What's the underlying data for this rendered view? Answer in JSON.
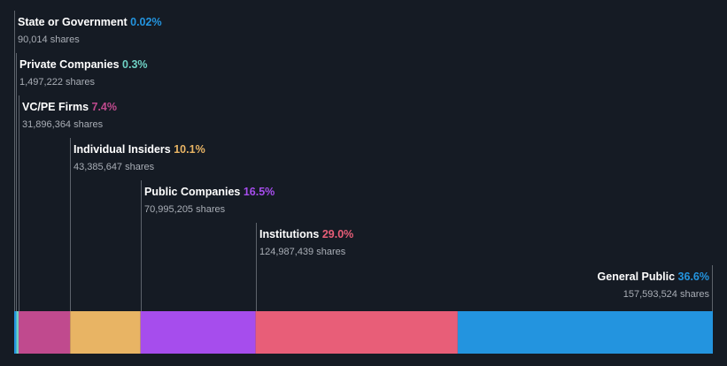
{
  "chart_data": {
    "type": "bar",
    "orientation": "horizontal-stacked",
    "categories": [
      "State or Government",
      "Private Companies",
      "VC/PE Firms",
      "Individual Insiders",
      "Public Companies",
      "Institutions",
      "General Public"
    ],
    "percent_labels": [
      "0.02%",
      "0.3%",
      "7.4%",
      "10.1%",
      "16.5%",
      "29.0%",
      "36.6%"
    ],
    "values": [
      0.02,
      0.3,
      7.4,
      10.1,
      16.5,
      29.0,
      36.6
    ],
    "shares_labels": [
      "90,014 shares",
      "1,497,222 shares",
      "31,896,364 shares",
      "43,385,647 shares",
      "70,995,205 shares",
      "124,987,439 shares",
      "157,593,524 shares"
    ],
    "shares": [
      90014,
      1497222,
      31896364,
      43385647,
      70995205,
      124987439,
      157593524
    ],
    "colors": [
      "#2394df",
      "#6ed1c4",
      "#c04a8e",
      "#e8b464",
      "#a64ded",
      "#e85e78",
      "#2394df"
    ],
    "title": "",
    "xlabel": "",
    "ylabel": "",
    "legend": "none",
    "grid": false
  }
}
